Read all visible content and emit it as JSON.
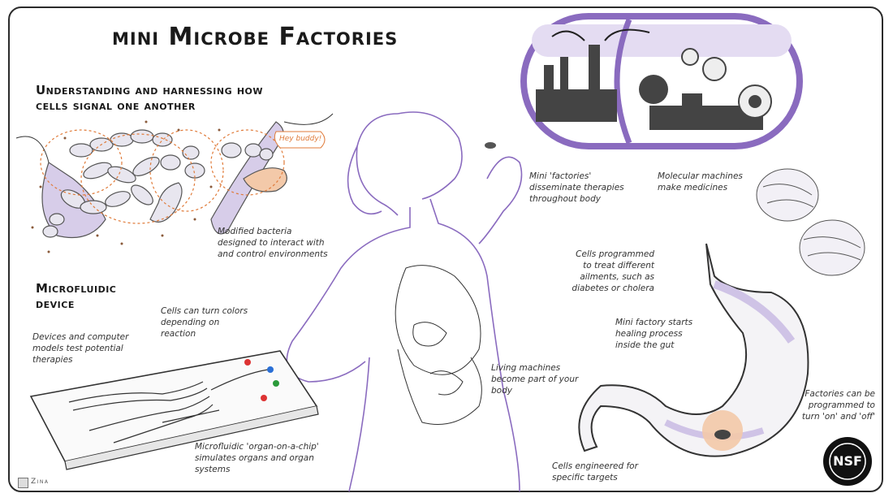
{
  "title": "mini Microbe Factories",
  "sections": {
    "signaling_heading": "Understanding and harnessing how cells signal one another",
    "microfluidic_heading": "Microfluidic device"
  },
  "notes": {
    "hey_buddy": "Hey buddy!",
    "modified_bacteria": "Modified bacteria designed to interact with and control environments",
    "cells_turn_colors": "Cells can turn colors depending on reaction",
    "devices_models": "Devices and computer models test potential therapies",
    "organ_on_chip": "Microfluidic 'organ-on-a-chip' simulates organs and organ systems",
    "mini_factories": "Mini 'factories' disseminate therapies throughout body",
    "molecular_machines": "Molecular machines make medicines",
    "cells_programmed": "Cells programmed to treat different ailments, such as diabetes or cholera",
    "mini_factory_heals": "Mini factory starts healing process inside the gut",
    "living_machines": "Living machines become part of your body",
    "factories_switch": "Factories can be programmed to turn 'on' and 'off'",
    "cells_engineered": "Cells engineered for specific targets"
  },
  "credit": "Zina",
  "logo_text": "NSF",
  "colors": {
    "purple": "#8a6bbf",
    "lavender": "#cfc3e6",
    "orange": "#e07b3a",
    "ink": "#2b2b2b",
    "factory_gray": "#444444"
  },
  "icons": [
    "bacteria-cluster-icon",
    "capsule-factory-icon",
    "gear-icon",
    "molecular-machine-icon",
    "stomach-icon",
    "microfluidic-chip-icon",
    "woman-figure-icon",
    "nsf-logo-icon"
  ]
}
